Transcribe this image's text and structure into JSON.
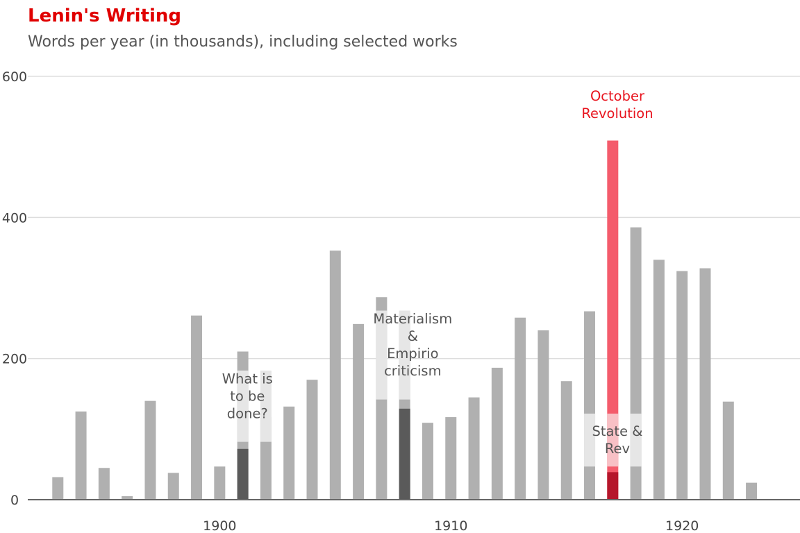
{
  "chart_data": {
    "type": "bar",
    "title": "Lenin's Writing",
    "subtitle": "Words per year (in thousands), including selected works",
    "ylim": [
      0,
      600
    ],
    "yticks": [
      0,
      200,
      400,
      600
    ],
    "xlim": [
      1891.7,
      1925.1
    ],
    "xticks": [
      1900,
      1910,
      1920
    ],
    "grid": true,
    "years": [
      1893,
      1894,
      1895,
      1896,
      1897,
      1898,
      1899,
      1900,
      1901,
      1902,
      1903,
      1904,
      1905,
      1906,
      1907,
      1908,
      1909,
      1910,
      1911,
      1912,
      1913,
      1914,
      1915,
      1916,
      1917,
      1918,
      1919,
      1920,
      1921,
      1922,
      1923
    ],
    "values": [
      32,
      125,
      45,
      5,
      140,
      38,
      261,
      47,
      210,
      117,
      132,
      170,
      353,
      249,
      287,
      264,
      109,
      117,
      145,
      187,
      258,
      240,
      168,
      267,
      509,
      386,
      340,
      324,
      328,
      139,
      24
    ],
    "works": [
      {
        "name": "What is to be done?",
        "year": 1901,
        "start": 72,
        "end": 82
      },
      {
        "name": "Materialism & Empirio criticism",
        "year": 1908,
        "start": 129,
        "end": 142
      },
      {
        "name": "State & Rev",
        "year": 1917,
        "start": 39,
        "end": 47
      }
    ],
    "annotations": [
      {
        "lines": [
          "What is",
          "to be",
          "done?"
        ],
        "x": 1901.2,
        "y": 147,
        "color": "#555555"
      },
      {
        "lines": [
          "Materialism",
          "&",
          "Empirio",
          "criticism"
        ],
        "x": 1908.35,
        "y": 220,
        "color": "#555555"
      },
      {
        "lines": [
          "State &",
          "Rev"
        ],
        "x": 1917.2,
        "y": 85,
        "color": "#555555"
      },
      {
        "lines": [
          "October",
          "Revolution"
        ],
        "x": 1917.2,
        "y": 560,
        "color": "#e8141e"
      }
    ],
    "colors": {
      "bar": "#b0b0b0",
      "work_bar": "#5a5a5a",
      "highlight_bar": "#f45b6b",
      "highlight_work_bar": "#b5162b",
      "band": "#e6e6e6",
      "band_highlight": "#f8c0c5",
      "grid": "#dddddd",
      "axis": "#666666",
      "title": "#e00000",
      "subtitle": "#555555"
    },
    "highlight_year": 1917,
    "bands": [
      {
        "from": 1900.75,
        "to": 1902.25,
        "ymin": 82,
        "ymax": 183
      },
      {
        "from": 1906.75,
        "to": 1908.25,
        "ymin": 142,
        "ymax": 268
      },
      {
        "from": 1915.75,
        "to": 1918.25,
        "ymin": 47,
        "ymax": 122
      }
    ],
    "xlabel": "",
    "ylabel": ""
  }
}
